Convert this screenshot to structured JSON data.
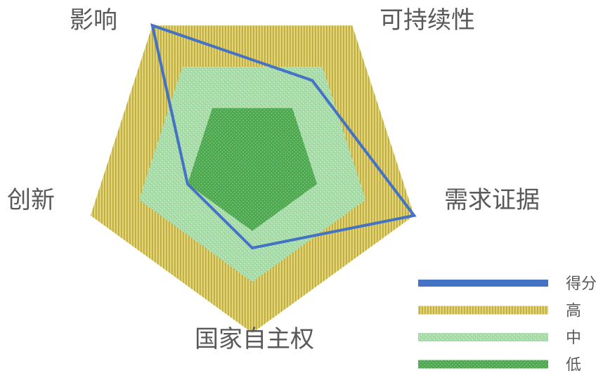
{
  "chart_data": {
    "type": "radar",
    "axes": [
      "需求证据",
      "国家自主权",
      "创新",
      "影响",
      "可持续性"
    ],
    "rmax": 100,
    "series": [
      {
        "name": "得分",
        "values": [
          100,
          50,
          40,
          100,
          60
        ],
        "color": "#4472C4"
      }
    ],
    "bands": [
      {
        "name": "高",
        "value": 100,
        "fill": "#D6C45A",
        "stripe": "#B5A832"
      },
      {
        "name": "中",
        "value": 70,
        "fill": "#9CD6A0",
        "stripe": "#7FC383"
      },
      {
        "name": "低",
        "value": 40,
        "fill": "#4CAF50",
        "stripe": "#3C8F40"
      }
    ],
    "legend": [
      "得分",
      "高",
      "中",
      "低"
    ],
    "legend_position": "bottom-right",
    "grid": false
  }
}
